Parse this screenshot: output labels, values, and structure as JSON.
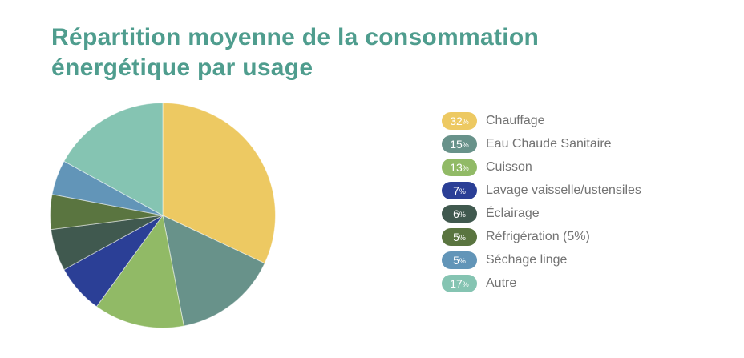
{
  "header": {
    "title_lines": [
      "Répartition moyenne de la consommation",
      "énergétique par usage"
    ],
    "title_color": "#4F9D8E"
  },
  "chart_data": {
    "type": "pie",
    "title": "Répartition moyenne de la consommation énergétique par usage",
    "start_angle": "top",
    "direction": "clockwise",
    "legend_position": "right",
    "percent_symbol": "%",
    "slices": [
      {
        "label": "Chauffage",
        "value_pct": 32,
        "color": "#EDC962"
      },
      {
        "label": "Eau Chaude Sanitaire",
        "value_pct": 15,
        "color": "#68928A"
      },
      {
        "label": "Cuisson",
        "value_pct": 13,
        "color": "#91BA66"
      },
      {
        "label": "Lavage vaisselle/ustensiles",
        "value_pct": 7,
        "color": "#2B3F96"
      },
      {
        "label": "Éclairage",
        "value_pct": 6,
        "color": "#40594F"
      },
      {
        "label": "Réfrigération (5%)",
        "value_pct": 5,
        "color": "#5A7540"
      },
      {
        "label": "Séchage linge",
        "value_pct": 5,
        "color": "#6295B8"
      },
      {
        "label": "Autre",
        "value_pct": 17,
        "color": "#85C4B2"
      }
    ]
  }
}
